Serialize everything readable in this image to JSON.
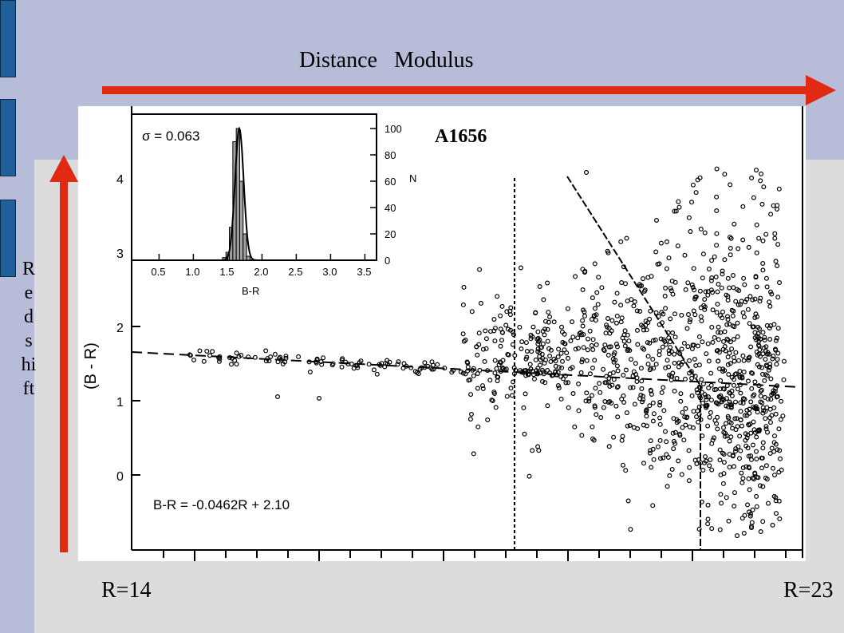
{
  "annotations": {
    "title": "Distance   Modulus",
    "x_left": "R=14",
    "x_right": "R=23",
    "y_label": "Redshift"
  },
  "colors": {
    "arrow": "#e02a12",
    "background_top": "#b7bcd9",
    "background_bottom": "#dcdcdc",
    "side_tab": "#1f5f9a"
  },
  "chart_data": [
    {
      "type": "scatter",
      "title": "A1656",
      "xlabel": "",
      "ylabel": "(B - R)",
      "ylim": [
        -1,
        5
      ],
      "y_ticks": [
        "0",
        "1",
        "2",
        "3",
        "4"
      ],
      "fit_label": "B-R = -0.0462R + 2.10",
      "red_sequence": {
        "slope": -0.0462,
        "intercept": 2.1
      },
      "points_description": "red sequence of galaxies near B-R 1.4-1.6 with a broad cloud at faint magnitudes"
    },
    {
      "type": "bar",
      "xlabel": "B-R",
      "ylabel": "N",
      "annotation": "σ = 0.063",
      "x_ticks": [
        "0.5",
        "1.0",
        "1.5",
        "2.0",
        "2.5",
        "3.0",
        "3.5"
      ],
      "y_ticks": [
        "0",
        "20",
        "40",
        "60",
        "80",
        "100"
      ],
      "bins": [
        1.45,
        1.5,
        1.55,
        1.6,
        1.65,
        1.7,
        1.75,
        1.8
      ],
      "values": [
        2,
        6,
        25,
        90,
        100,
        60,
        20,
        3
      ]
    }
  ]
}
